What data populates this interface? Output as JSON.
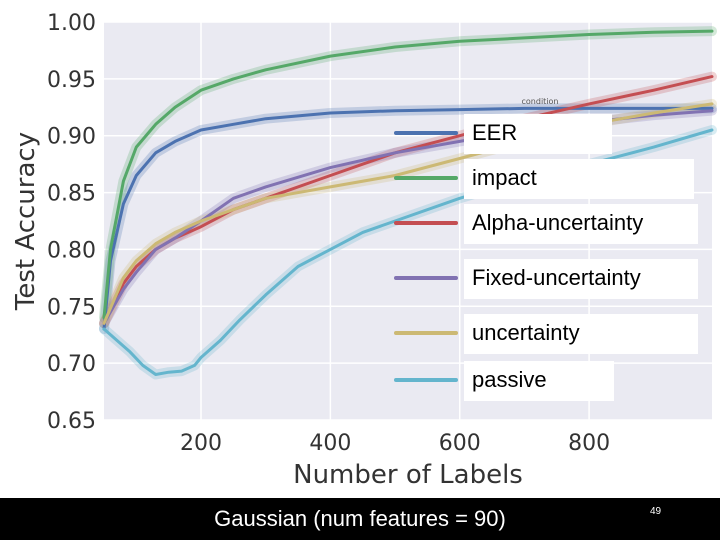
{
  "chart_data": {
    "type": "line",
    "xlabel": "Number of Labels",
    "ylabel": "Test Accuracy",
    "xlim": [
      50,
      990
    ],
    "ylim": [
      0.65,
      1.0
    ],
    "xticks": [
      200,
      400,
      600,
      800
    ],
    "yticks": [
      0.65,
      0.7,
      0.75,
      0.8,
      0.85,
      0.9,
      0.95,
      1.0
    ],
    "xtick_labels": [
      "200",
      "400",
      "600",
      "800"
    ],
    "ytick_labels": [
      "0.65",
      "0.70",
      "0.75",
      "0.80",
      "0.85",
      "0.90",
      "0.95",
      "1.00"
    ],
    "grid": true,
    "legend_title": "condition",
    "legend_position": "right",
    "series": [
      {
        "name": "EER",
        "color": "#4c72b0",
        "x": [
          50,
          60,
          80,
          100,
          130,
          160,
          200,
          250,
          300,
          400,
          500,
          600,
          700,
          800,
          900,
          990
        ],
        "y": [
          0.73,
          0.79,
          0.84,
          0.865,
          0.885,
          0.895,
          0.905,
          0.91,
          0.915,
          0.92,
          0.922,
          0.923,
          0.924,
          0.924,
          0.924,
          0.924
        ]
      },
      {
        "name": "impact",
        "color": "#55a868",
        "x": [
          50,
          60,
          80,
          100,
          130,
          160,
          200,
          250,
          300,
          400,
          500,
          600,
          700,
          800,
          900,
          990
        ],
        "y": [
          0.74,
          0.8,
          0.86,
          0.89,
          0.91,
          0.925,
          0.94,
          0.95,
          0.958,
          0.97,
          0.978,
          0.983,
          0.986,
          0.989,
          0.991,
          0.992
        ]
      },
      {
        "name": "Alpha-uncertainty",
        "color": "#c44e52",
        "x": [
          50,
          80,
          100,
          130,
          160,
          200,
          250,
          300,
          400,
          500,
          600,
          700,
          800,
          900,
          990
        ],
        "y": [
          0.735,
          0.77,
          0.785,
          0.8,
          0.81,
          0.82,
          0.835,
          0.845,
          0.865,
          0.885,
          0.9,
          0.915,
          0.928,
          0.94,
          0.952
        ]
      },
      {
        "name": "Fixed-uncertainty",
        "color": "#8172b2",
        "x": [
          50,
          80,
          100,
          130,
          160,
          200,
          250,
          300,
          400,
          500,
          600,
          700,
          800,
          900,
          990
        ],
        "y": [
          0.735,
          0.765,
          0.78,
          0.8,
          0.81,
          0.825,
          0.845,
          0.855,
          0.872,
          0.885,
          0.895,
          0.905,
          0.912,
          0.918,
          0.922
        ]
      },
      {
        "name": "uncertainty",
        "color": "#ccb974",
        "x": [
          50,
          80,
          100,
          130,
          160,
          200,
          250,
          300,
          400,
          500,
          600,
          700,
          800,
          900,
          990
        ],
        "y": [
          0.735,
          0.775,
          0.79,
          0.805,
          0.815,
          0.825,
          0.835,
          0.845,
          0.855,
          0.865,
          0.88,
          0.895,
          0.91,
          0.92,
          0.928
        ]
      },
      {
        "name": "passive",
        "color": "#64b5cd",
        "x": [
          50,
          70,
          90,
          110,
          130,
          150,
          170,
          190,
          200,
          230,
          260,
          300,
          350,
          400,
          450,
          500,
          600,
          700,
          800,
          900,
          990
        ],
        "y": [
          0.73,
          0.72,
          0.71,
          0.698,
          0.69,
          0.692,
          0.693,
          0.698,
          0.705,
          0.72,
          0.738,
          0.76,
          0.785,
          0.8,
          0.815,
          0.825,
          0.845,
          0.862,
          0.875,
          0.89,
          0.905
        ]
      }
    ]
  },
  "footer": {
    "caption": "Gaussian (num features = 90)",
    "page_number": "49"
  }
}
